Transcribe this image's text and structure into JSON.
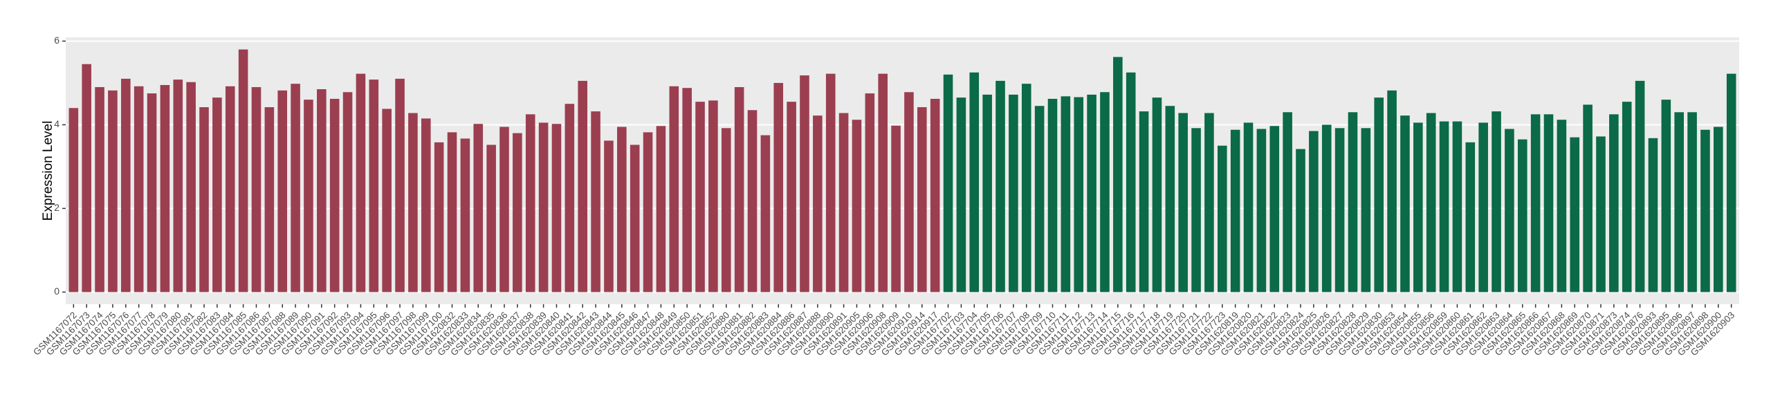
{
  "chart_data": {
    "type": "bar",
    "y_label": "Expression Level",
    "ylim": [
      -0.29,
      6.09
    ],
    "yticks": [
      0,
      2,
      4,
      6
    ],
    "grid": true,
    "categories": [
      "GSM1167072",
      "GSM1167073",
      "GSM1167074",
      "GSM1167075",
      "GSM1167076",
      "GSM1167077",
      "GSM1167078",
      "GSM1167079",
      "GSM1167080",
      "GSM1167081",
      "GSM1167082",
      "GSM1167083",
      "GSM1167084",
      "GSM1167085",
      "GSM1167086",
      "GSM1167087",
      "GSM1167088",
      "GSM1167089",
      "GSM1167090",
      "GSM1167091",
      "GSM1167092",
      "GSM1167093",
      "GSM1167094",
      "GSM1167095",
      "GSM1167096",
      "GSM1167097",
      "GSM1167098",
      "GSM1167099",
      "GSM1167100",
      "GSM1620832",
      "GSM1620833",
      "GSM1620834",
      "GSM1620835",
      "GSM1620836",
      "GSM1620837",
      "GSM1620838",
      "GSM1620839",
      "GSM1620840",
      "GSM1620841",
      "GSM1620842",
      "GSM1620843",
      "GSM1620844",
      "GSM1620845",
      "GSM1620846",
      "GSM1620847",
      "GSM1620848",
      "GSM1620849",
      "GSM1620850",
      "GSM1620851",
      "GSM1620852",
      "GSM1620880",
      "GSM1620881",
      "GSM1620882",
      "GSM1620883",
      "GSM1620884",
      "GSM1620886",
      "GSM1620887",
      "GSM1620888",
      "GSM1620890",
      "GSM1620891",
      "GSM1620905",
      "GSM1620906",
      "GSM1620908",
      "GSM1620909",
      "GSM1620910",
      "GSM1620914",
      "GSM1620917",
      "GSM1167702",
      "GSM1167703",
      "GSM1167704",
      "GSM1167705",
      "GSM1167706",
      "GSM1167707",
      "GSM1167708",
      "GSM1167709",
      "GSM1167710",
      "GSM1167711",
      "GSM1167712",
      "GSM1167713",
      "GSM1167714",
      "GSM1167715",
      "GSM1167716",
      "GSM1167717",
      "GSM1167718",
      "GSM1167719",
      "GSM1167720",
      "GSM1167721",
      "GSM1167722",
      "GSM1167723",
      "GSM1620819",
      "GSM1620820",
      "GSM1620821",
      "GSM1620822",
      "GSM1620823",
      "GSM1620824",
      "GSM1620825",
      "GSM1620826",
      "GSM1620827",
      "GSM1620828",
      "GSM1620829",
      "GSM1620830",
      "GSM1620853",
      "GSM1620854",
      "GSM1620855",
      "GSM1620856",
      "GSM1620859",
      "GSM1620860",
      "GSM1620861",
      "GSM1620862",
      "GSM1620863",
      "GSM1620864",
      "GSM1620865",
      "GSM1620866",
      "GSM1620867",
      "GSM1620868",
      "GSM1620869",
      "GSM1620870",
      "GSM1620871",
      "GSM1620873",
      "GSM1620874",
      "GSM1620876",
      "GSM1620893",
      "GSM1620895",
      "GSM1620896",
      "GSM1620897",
      "GSM1620898",
      "GSM1620900",
      "GSM1620903"
    ],
    "values": [
      4.4,
      5.45,
      4.9,
      4.82,
      5.1,
      4.92,
      4.75,
      4.95,
      5.08,
      5.02,
      4.42,
      4.65,
      4.92,
      5.8,
      4.9,
      4.42,
      4.82,
      4.98,
      4.6,
      4.85,
      4.62,
      4.78,
      5.22,
      5.08,
      4.38,
      5.1,
      4.28,
      4.15,
      3.58,
      3.82,
      3.67,
      4.02,
      3.52,
      3.95,
      3.8,
      4.25,
      4.05,
      4.02,
      4.5,
      5.05,
      4.32,
      3.62,
      3.95,
      3.52,
      3.82,
      3.97,
      4.92,
      4.88,
      4.55,
      4.58,
      3.92,
      4.9,
      4.35,
      3.75,
      5.0,
      4.55,
      5.18,
      4.22,
      5.22,
      4.28,
      4.12,
      4.75,
      5.22,
      3.98,
      4.78,
      4.42,
      4.62,
      5.2,
      4.65,
      5.25,
      4.72,
      5.05,
      4.72,
      4.98,
      4.45,
      4.62,
      4.68,
      4.66,
      4.72,
      4.78,
      5.62,
      5.25,
      4.32,
      4.65,
      4.45,
      4.28,
      3.92,
      4.28,
      3.5,
      3.88,
      4.05,
      3.9,
      3.97,
      4.3,
      3.42,
      3.85,
      4.0,
      3.92,
      4.3,
      3.92,
      4.65,
      4.82,
      4.22,
      4.05,
      4.28,
      4.08,
      4.08,
      3.58,
      4.05,
      4.32,
      3.9,
      3.65,
      4.25,
      4.25,
      4.12,
      3.7,
      4.48,
      3.72,
      4.25,
      4.55,
      5.05,
      3.68,
      4.6,
      4.3,
      4.3,
      3.88,
      3.95,
      5.22
    ],
    "colors": [
      "#9b3f50",
      "#9b3f50",
      "#9b3f50",
      "#9b3f50",
      "#9b3f50",
      "#9b3f50",
      "#9b3f50",
      "#9b3f50",
      "#9b3f50",
      "#9b3f50",
      "#9b3f50",
      "#9b3f50",
      "#9b3f50",
      "#9b3f50",
      "#9b3f50",
      "#9b3f50",
      "#9b3f50",
      "#9b3f50",
      "#9b3f50",
      "#9b3f50",
      "#9b3f50",
      "#9b3f50",
      "#9b3f50",
      "#9b3f50",
      "#9b3f50",
      "#9b3f50",
      "#9b3f50",
      "#9b3f50",
      "#9b3f50",
      "#9b3f50",
      "#9b3f50",
      "#9b3f50",
      "#9b3f50",
      "#9b3f50",
      "#9b3f50",
      "#9b3f50",
      "#9b3f50",
      "#9b3f50",
      "#9b3f50",
      "#9b3f50",
      "#9b3f50",
      "#9b3f50",
      "#9b3f50",
      "#9b3f50",
      "#9b3f50",
      "#9b3f50",
      "#9b3f50",
      "#9b3f50",
      "#9b3f50",
      "#9b3f50",
      "#9b3f50",
      "#9b3f50",
      "#9b3f50",
      "#9b3f50",
      "#9b3f50",
      "#9b3f50",
      "#9b3f50",
      "#9b3f50",
      "#9b3f50",
      "#9b3f50",
      "#9b3f50",
      "#9b3f50",
      "#9b3f50",
      "#9b3f50",
      "#9b3f50",
      "#9b3f50",
      "#9b3f50",
      "#0b6a48",
      "#0b6a48",
      "#0b6a48",
      "#0b6a48",
      "#0b6a48",
      "#0b6a48",
      "#0b6a48",
      "#0b6a48",
      "#0b6a48",
      "#0b6a48",
      "#0b6a48",
      "#0b6a48",
      "#0b6a48",
      "#0b6a48",
      "#0b6a48",
      "#0b6a48",
      "#0b6a48",
      "#0b6a48",
      "#0b6a48",
      "#0b6a48",
      "#0b6a48",
      "#0b6a48",
      "#0b6a48",
      "#0b6a48",
      "#0b6a48",
      "#0b6a48",
      "#0b6a48",
      "#0b6a48",
      "#0b6a48",
      "#0b6a48",
      "#0b6a48",
      "#0b6a48",
      "#0b6a48",
      "#0b6a48",
      "#0b6a48",
      "#0b6a48",
      "#0b6a48",
      "#0b6a48",
      "#0b6a48",
      "#0b6a48",
      "#0b6a48",
      "#0b6a48",
      "#0b6a48",
      "#0b6a48",
      "#0b6a48",
      "#0b6a48",
      "#0b6a48",
      "#0b6a48",
      "#0b6a48",
      "#0b6a48",
      "#0b6a48",
      "#0b6a48",
      "#0b6a48",
      "#0b6a48",
      "#0b6a48",
      "#0b6a48",
      "#0b6a48",
      "#0b6a48",
      "#0b6a48",
      "#0b6a48",
      "#0b6a48"
    ]
  }
}
